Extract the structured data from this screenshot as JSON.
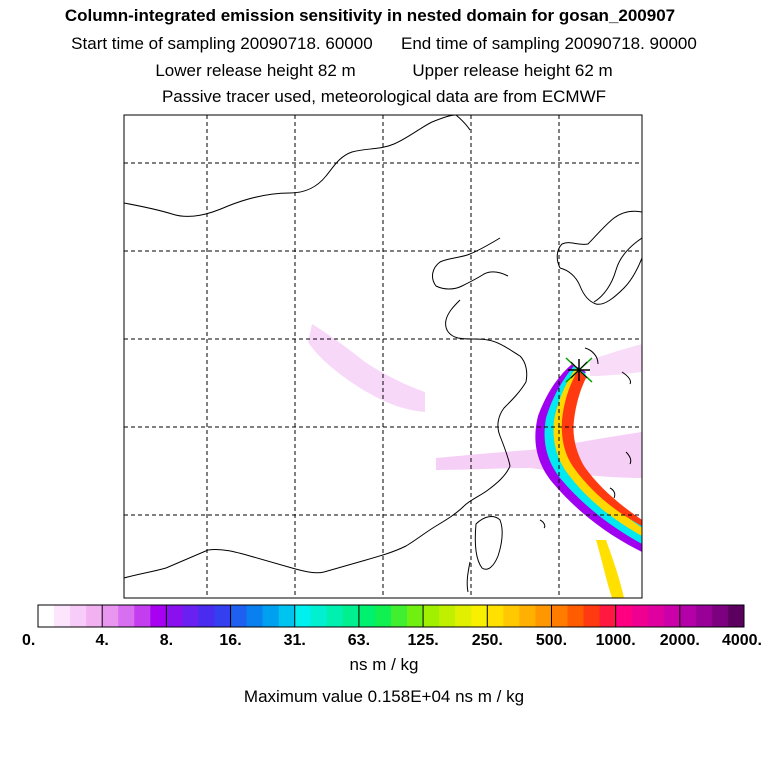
{
  "chart_data": {
    "type": "heatmap",
    "title": "Column-integrated emission sensitivity in nested domain for gosan_200907",
    "start_label": "Start time of sampling 20090718. 60000",
    "end_label": "End time of sampling 20090718. 90000",
    "lower_label": "Lower release height   82 m",
    "upper_label": "Upper release height   62 m",
    "tracer_label": "Passive tracer used, meteorological data are from ECMWF",
    "colorbar_ticks": [
      "0.",
      "4.",
      "8.",
      "16.",
      "31.",
      "63.",
      "125.",
      "250.",
      "500.",
      "1000.",
      "2000.",
      "4000."
    ],
    "colorbar_colors": [
      "#ffffff",
      "#fde6fd",
      "#f8ccf8",
      "#f2b2f2",
      "#e996f0",
      "#d86ef0",
      "#c43ef0",
      "#a800f0",
      "#8a10f0",
      "#6a20f0",
      "#4a2cf0",
      "#3440f0",
      "#1e60f0",
      "#0a80f0",
      "#00a0f0",
      "#00c4f0",
      "#00f0f0",
      "#00f0d0",
      "#00f0b0",
      "#00f090",
      "#00f070",
      "#10f050",
      "#40f030",
      "#70f010",
      "#a0f000",
      "#c0f000",
      "#e0f000",
      "#f8f000",
      "#ffe000",
      "#ffc800",
      "#ffb000",
      "#ff9800",
      "#ff7c00",
      "#ff5c00",
      "#ff3a10",
      "#ff1840",
      "#ff0080",
      "#f00090",
      "#e000a0",
      "#cc00a8",
      "#b400a8",
      "#980098",
      "#7c0080",
      "#5c0060"
    ],
    "unit": "ns m / kg",
    "max_value_label": "Maximum value  0.158E+04 ns m / kg",
    "receptor": "gosan"
  }
}
